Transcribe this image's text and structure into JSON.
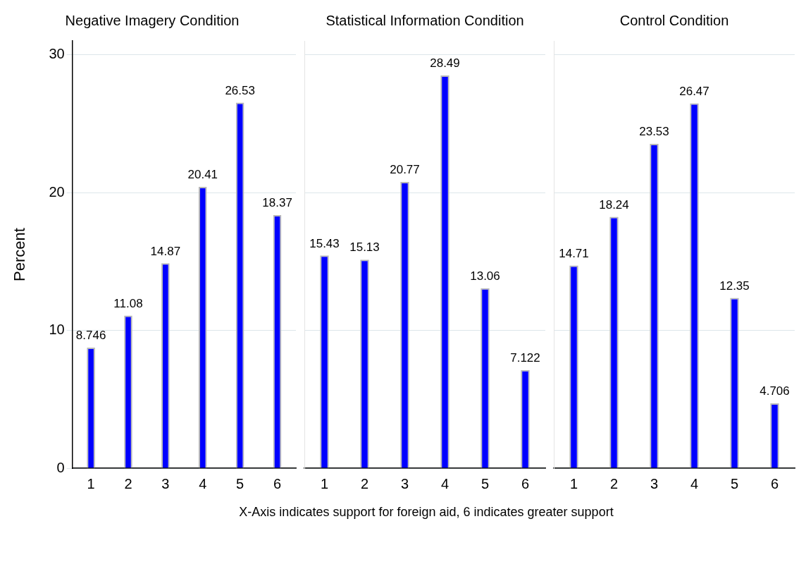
{
  "chart_data": [
    {
      "type": "bar",
      "title": "Negative Imagery Condition",
      "ylabel": "Percent",
      "categories": [
        "1",
        "2",
        "3",
        "4",
        "5",
        "6"
      ],
      "values": [
        8.746,
        11.08,
        14.87,
        20.41,
        26.53,
        18.37
      ],
      "color": "#0000ff",
      "ylim": [
        0,
        31
      ],
      "yticks": [
        0,
        10,
        20,
        30
      ],
      "grid": "y",
      "data_labels": true
    },
    {
      "type": "bar",
      "title": "Statistical Information Condition",
      "xlabel": "X-Axis indicates support for foreign aid, 6 indicates greater support",
      "categories": [
        "1",
        "2",
        "3",
        "4",
        "5",
        "6"
      ],
      "values": [
        15.43,
        15.13,
        20.77,
        28.49,
        13.06,
        7.122
      ],
      "color": "#0000ff",
      "ylim": [
        0,
        31
      ],
      "yticks": [
        0,
        10,
        20,
        30
      ],
      "grid": "y",
      "data_labels": true,
      "tick_labels": "x"
    },
    {
      "type": "bar",
      "title": "Control Condition",
      "categories": [
        "1",
        "2",
        "3",
        "4",
        "5",
        "6"
      ],
      "values": [
        14.71,
        18.24,
        23.53,
        26.47,
        12.35,
        4.706
      ],
      "color": "#0000ff",
      "ylim": [
        0,
        31
      ],
      "yticks": [
        0,
        10,
        20,
        30
      ],
      "grid": "y",
      "data_labels": true,
      "tick_labels": "x"
    }
  ]
}
